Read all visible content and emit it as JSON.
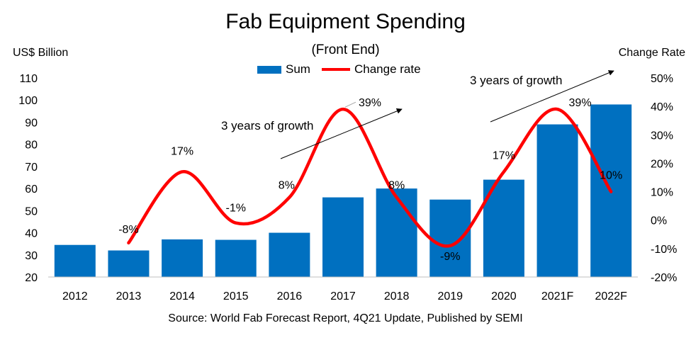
{
  "chart_data": {
    "type": "bar+line",
    "title": "Fab Equipment Spending",
    "subtitle": "(Front End)",
    "ylabel": "US$ Billion",
    "y2label": "Change Rate",
    "categories": [
      "2012",
      "2013",
      "2014",
      "2015",
      "2016",
      "2017",
      "2018",
      "2019",
      "2020",
      "2021F",
      "2022F"
    ],
    "series": [
      {
        "name": "Sum",
        "kind": "bar",
        "color": "#0070c0",
        "values": [
          34.5,
          32,
          37,
          36.8,
          40,
          56,
          60,
          55,
          64,
          89,
          98
        ]
      },
      {
        "name": "Change rate",
        "kind": "line",
        "color": "#ff0000",
        "values": [
          null,
          -8,
          17,
          -1,
          8,
          39,
          8,
          -9,
          17,
          39,
          10
        ],
        "labels": [
          "",
          "-8%",
          "17%",
          "-1%",
          "8%",
          "39%",
          "8%",
          "-9%",
          "17%",
          "39%",
          "10%"
        ]
      }
    ],
    "ylim": [
      20,
      110
    ],
    "yticks": [
      "20",
      "30",
      "40",
      "50",
      "60",
      "70",
      "80",
      "90",
      "100",
      "110"
    ],
    "y2lim": [
      -20,
      50
    ],
    "y2ticks": [
      "-20%",
      "-10%",
      "0%",
      "10%",
      "20%",
      "30%",
      "40%",
      "50%"
    ],
    "annotations": [
      "3 years of growth",
      "3 years of growth"
    ],
    "source": "Source: World Fab Forecast Report, 4Q21 Update, Published by SEMI"
  },
  "legend": {
    "sum": "Sum",
    "change": "Change rate"
  }
}
